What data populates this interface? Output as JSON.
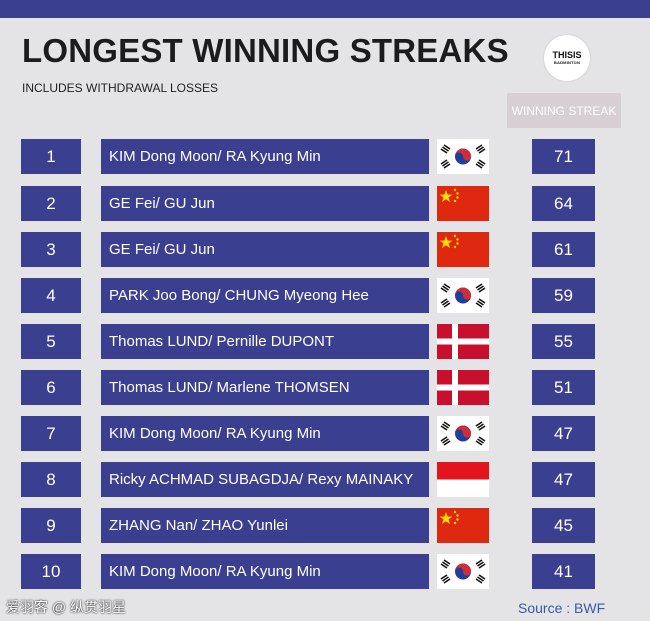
{
  "header": {
    "title": "LONGEST WINNING STREAKS",
    "subtitle": "INCLUDES WITHDRAWAL LOSSES",
    "logo_line1": "THISIS",
    "logo_line2": "BADMINTON",
    "streak_label": "WINNING STREAK"
  },
  "rows": [
    {
      "rank": "1",
      "pair": "KIM Dong Moon/ RA Kyung Min",
      "flag": "korea-flag-icon",
      "streak": "71"
    },
    {
      "rank": "2",
      "pair": "GE Fei/ GU Jun",
      "flag": "china-flag-icon",
      "streak": "64"
    },
    {
      "rank": "3",
      "pair": "GE Fei/ GU Jun",
      "flag": "china-flag-icon",
      "streak": "61"
    },
    {
      "rank": "4",
      "pair": "PARK Joo Bong/ CHUNG Myeong Hee",
      "flag": "korea-flag-icon",
      "streak": "59"
    },
    {
      "rank": "5",
      "pair": "Thomas LUND/ Pernille DUPONT",
      "flag": "denmark-flag-icon",
      "streak": "55"
    },
    {
      "rank": "6",
      "pair": "Thomas LUND/ Marlene THOMSEN",
      "flag": "denmark-flag-icon",
      "streak": "51"
    },
    {
      "rank": "7",
      "pair": "KIM Dong Moon/ RA Kyung Min",
      "flag": "korea-flag-icon",
      "streak": "47"
    },
    {
      "rank": "8",
      "pair": "Ricky ACHMAD SUBAGDJA/ Rexy MAINAKY",
      "flag": "indonesia-flag-icon",
      "streak": "47"
    },
    {
      "rank": "9",
      "pair": "ZHANG Nan/ ZHAO Yunlei",
      "flag": "china-flag-icon",
      "streak": "45"
    },
    {
      "rank": "10",
      "pair": "KIM Dong Moon/ RA Kyung Min",
      "flag": "korea-flag-icon",
      "streak": "41"
    }
  ],
  "footer": {
    "watermark": "爱羽客 @ 纵贯羽星",
    "source": "Source : BWF"
  },
  "colors": {
    "bar": "#3a3f8f",
    "background": "#e4e4e7",
    "header_chip": "#d7cfd4"
  }
}
